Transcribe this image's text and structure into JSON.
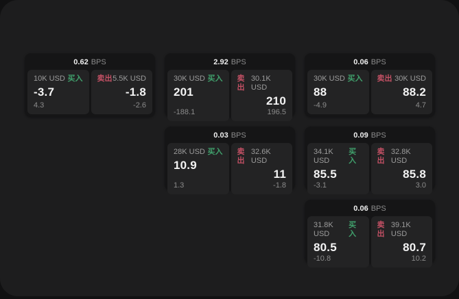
{
  "labels": {
    "bps_unit": "BPS",
    "buy": "买入",
    "sell": "卖出"
  },
  "colors": {
    "window_bg": "#1d1d1e",
    "card_bg": "#151516",
    "panel_bg": "#232324",
    "buy_green": "#40a06c",
    "sell_red": "#c25064",
    "value_white": "#f3f3f3",
    "muted_gray": "#8b8b8b"
  },
  "cards": [
    {
      "bps": "0.62",
      "buy": {
        "amount": "10K USD",
        "price": "-3.7",
        "delta": "4.3"
      },
      "sell": {
        "amount": "5.5K USD",
        "price": "-1.8",
        "delta": "-2.6"
      }
    },
    {
      "bps": "2.92",
      "buy": {
        "amount": "30K USD",
        "price": "201",
        "delta": "-188.1"
      },
      "sell": {
        "amount": "30.1K USD",
        "price": "210",
        "delta": "196.5"
      }
    },
    {
      "bps": "0.06",
      "buy": {
        "amount": "30K USD",
        "price": "88",
        "delta": "-4.9"
      },
      "sell": {
        "amount": "30K USD",
        "price": "88.2",
        "delta": "4.7"
      }
    },
    {
      "bps": "0.03",
      "buy": {
        "amount": "28K USD",
        "price": "10.9",
        "delta": "1.3"
      },
      "sell": {
        "amount": "32.6K USD",
        "price": "11",
        "delta": "-1.8"
      }
    },
    {
      "bps": "0.09",
      "buy": {
        "amount": "34.1K USD",
        "price": "85.5",
        "delta": "-3.1"
      },
      "sell": {
        "amount": "32.8K USD",
        "price": "85.8",
        "delta": "3.0"
      }
    },
    {
      "bps": "0.06",
      "buy": {
        "amount": "31.8K USD",
        "price": "80.5",
        "delta": "-10.8"
      },
      "sell": {
        "amount": "39.1K USD",
        "price": "80.7",
        "delta": "10.2"
      }
    }
  ]
}
